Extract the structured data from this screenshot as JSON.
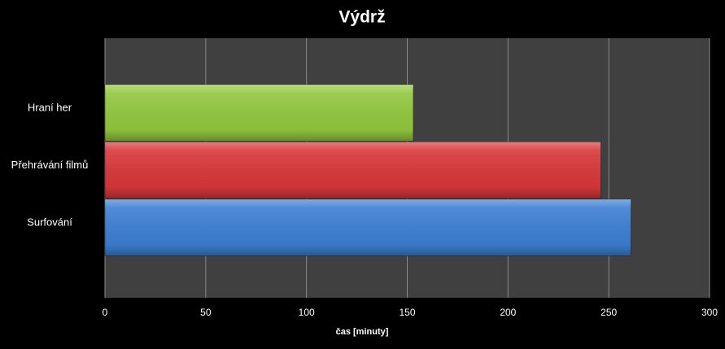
{
  "chart_data": {
    "type": "barh",
    "title": "Výdrž",
    "xlabel": "čas [minuty]",
    "categories": [
      "Hraní her",
      "Přehrávání filmů",
      "Surfování"
    ],
    "values": [
      153,
      246,
      261
    ],
    "colors": [
      "#92c83e",
      "#d9373a",
      "#3d7fd4"
    ],
    "xlim": [
      0,
      300
    ],
    "xticks": [
      0,
      50,
      100,
      150,
      200,
      250,
      300
    ],
    "grid": true
  }
}
